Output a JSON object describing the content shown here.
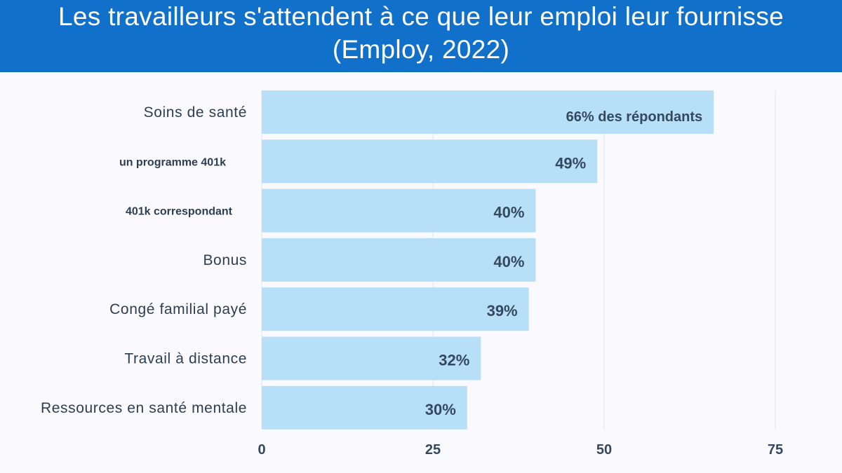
{
  "chart_data": {
    "type": "bar",
    "orientation": "horizontal",
    "title": "Les travailleurs s'attendent à ce que leur emploi leur fournisse (Employ, 2022)",
    "categories": [
      "Soins de santé",
      "un programme 401k",
      "401k correspondant",
      "Bonus",
      "Congé familial payé",
      "Travail à distance",
      "Ressources en santé mentale"
    ],
    "values": [
      66,
      49,
      40,
      40,
      39,
      32,
      30
    ],
    "data_labels": [
      "66% des répondants",
      "49%",
      "40%",
      "40%",
      "39%",
      "32%",
      "30%"
    ],
    "xlim": [
      0,
      75
    ],
    "xticks": [
      "0",
      "25",
      "50",
      "75"
    ],
    "grid": true,
    "colors": {
      "bar": "#b8dff8",
      "title_bg": "#1170c9",
      "text": "#34495e"
    }
  }
}
